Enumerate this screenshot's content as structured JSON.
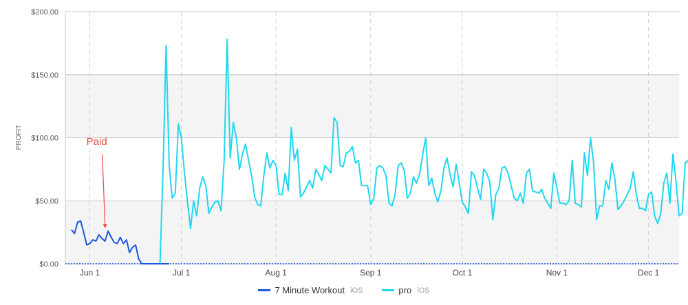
{
  "chart_data": {
    "type": "line",
    "ylabel": "PROFIT",
    "ylim": [
      0,
      200
    ],
    "y_ticks": [
      "$0.00",
      "$50.00",
      "$100.00",
      "$150.00",
      "$200.00"
    ],
    "y_tick_values": [
      0,
      50,
      100,
      150,
      200
    ],
    "x_ticks": [
      "Jun 1",
      "Jul 1",
      "Aug 1",
      "Sep 1",
      "Oct 1",
      "Nov 1",
      "Dec 1"
    ],
    "x_tick_days": [
      0,
      30,
      61,
      92,
      122,
      153,
      183
    ],
    "xlim_days": [
      -8,
      193
    ],
    "grid": true,
    "legend_position": "bottom",
    "annotation": {
      "text": "Paid",
      "color": "#e74c3c",
      "day": 5,
      "value": 26
    },
    "series": [
      {
        "name": "7 Minute Workout",
        "platform": "iOS",
        "color": "#1a56db",
        "start_day": -6,
        "values": [
          27,
          24,
          33,
          34,
          25,
          15,
          16,
          19,
          18,
          23,
          20,
          18,
          26,
          21,
          17,
          16,
          21,
          16,
          19,
          9,
          13,
          15,
          4,
          0,
          0,
          0,
          0,
          0,
          0,
          0,
          0,
          0,
          0
        ]
      },
      {
        "name": "pro",
        "platform": "iOS",
        "color": "#1ed8f0",
        "start_day": 23,
        "values": [
          0,
          75,
          173,
          78,
          52,
          56,
          111,
          100,
          72,
          49,
          28,
          50,
          38,
          60,
          69,
          62,
          40,
          45,
          49,
          50,
          42,
          82,
          178,
          84,
          112,
          100,
          75,
          87,
          95,
          82,
          70,
          53,
          47,
          46,
          70,
          88,
          76,
          82,
          78,
          55,
          55,
          72,
          58,
          108,
          82,
          91,
          53,
          56,
          61,
          66,
          60,
          75,
          71,
          66,
          78,
          75,
          72,
          116,
          112,
          78,
          77,
          88,
          89,
          93,
          80,
          82,
          62,
          62,
          62,
          47,
          52,
          76,
          78,
          76,
          70,
          48,
          46,
          55,
          78,
          80,
          74,
          52,
          56,
          69,
          64,
          71,
          86,
          100,
          62,
          68,
          56,
          49,
          58,
          76,
          84,
          71,
          61,
          79,
          64,
          49,
          45,
          40,
          73,
          70,
          60,
          51,
          75,
          72,
          65,
          35,
          55,
          60,
          76,
          77,
          72,
          62,
          52,
          50,
          56,
          48,
          72,
          75,
          58,
          57,
          56,
          59,
          52,
          48,
          44,
          72,
          60,
          48,
          48,
          47,
          50,
          82,
          48,
          47,
          45,
          88,
          70,
          100,
          81,
          35,
          46,
          46,
          66,
          59,
          80,
          67,
          43,
          46,
          50,
          55,
          60,
          73,
          55,
          44,
          44,
          42,
          55,
          57,
          38,
          32,
          40,
          64,
          72,
          48,
          87,
          65,
          38,
          40,
          80,
          82,
          57,
          52
        ]
      }
    ]
  }
}
